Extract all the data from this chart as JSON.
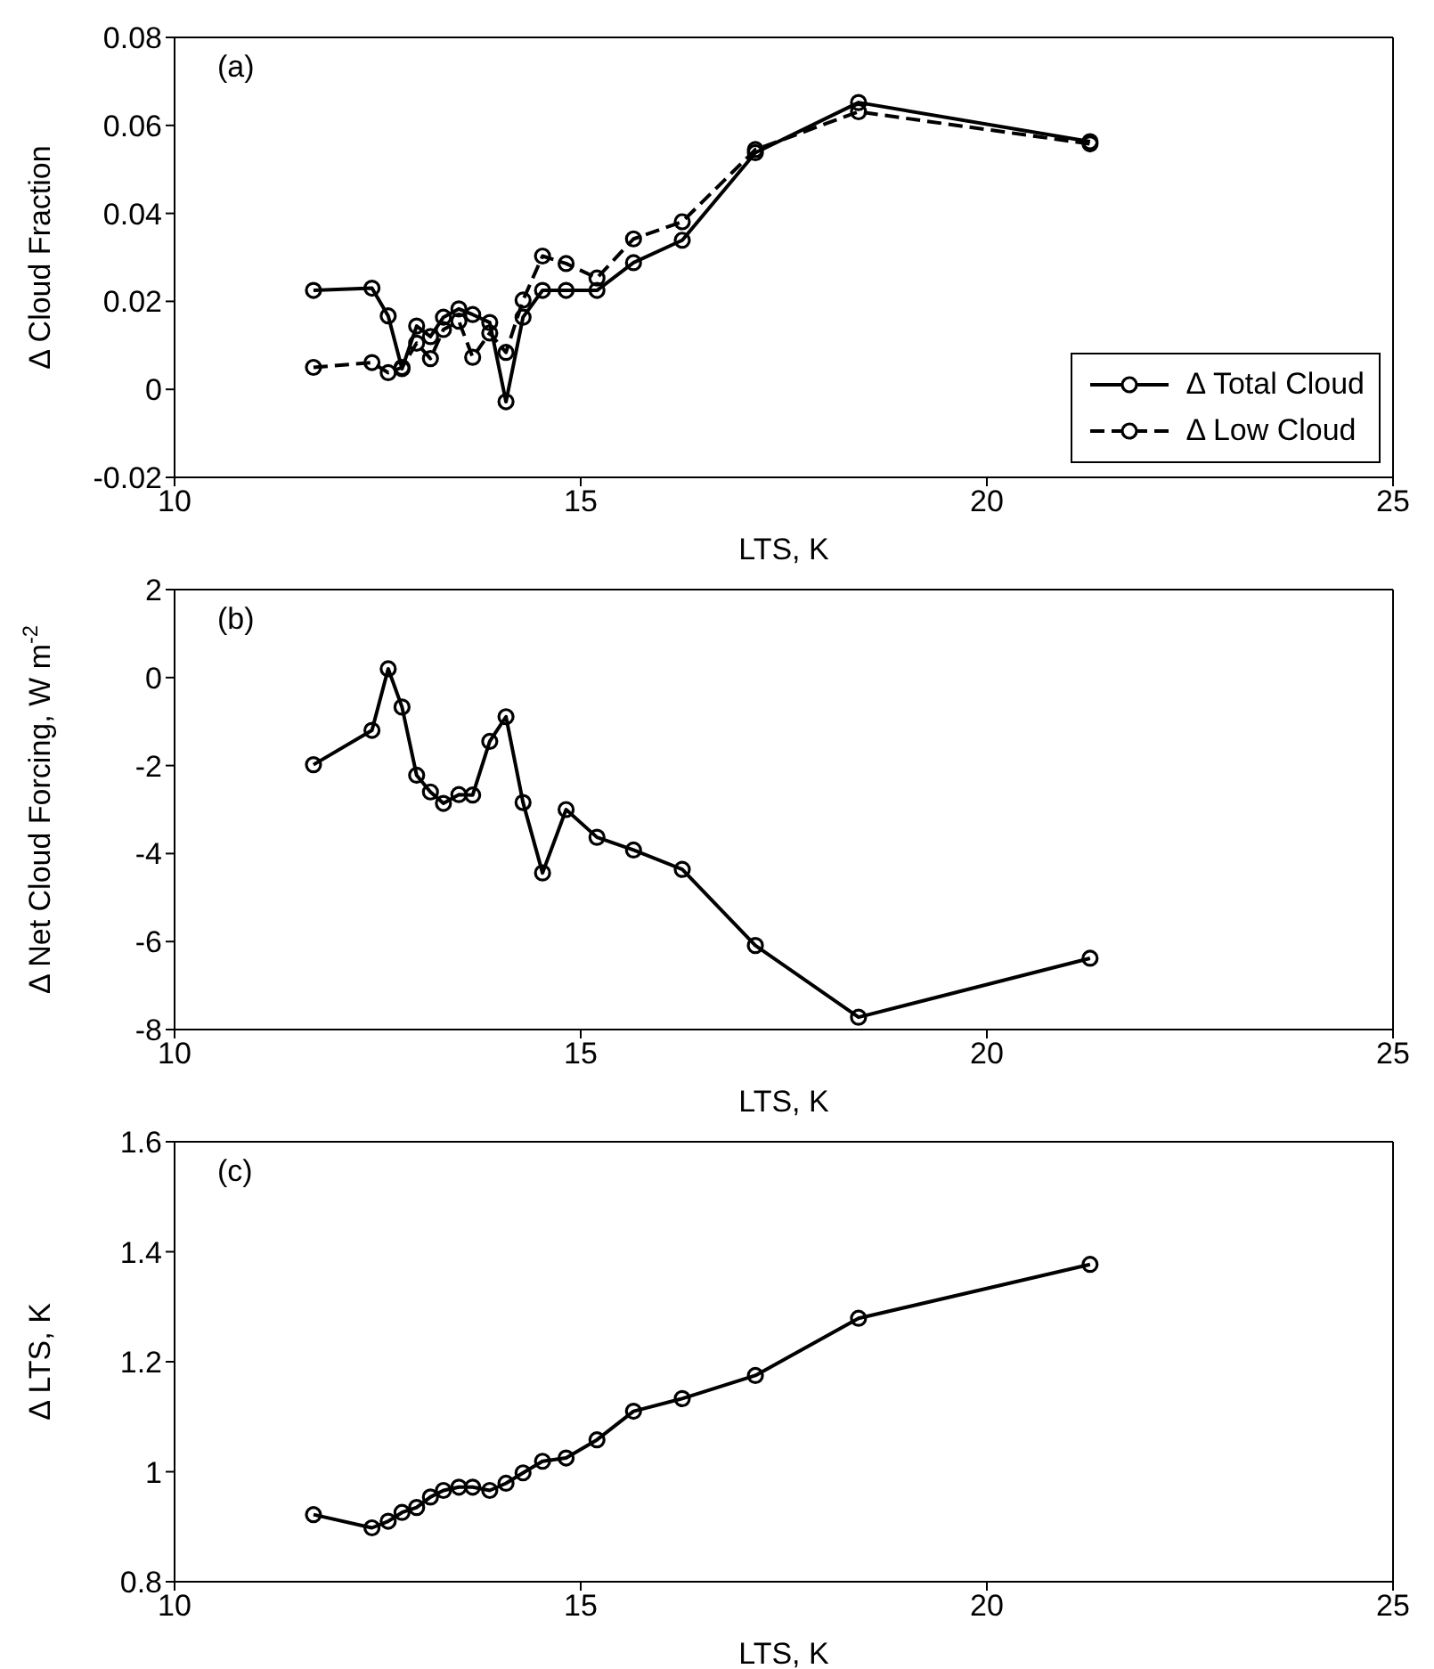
{
  "chart_data": [
    {
      "type": "line",
      "x": [
        11.71,
        12.43,
        12.63,
        12.8,
        12.98,
        13.15,
        13.31,
        13.5,
        13.67,
        13.88,
        14.08,
        14.29,
        14.53,
        14.82,
        15.2,
        15.65,
        16.25,
        17.15,
        18.42,
        21.27
      ],
      "series": [
        {
          "name": "Δ Total Cloud",
          "color": "#000000",
          "line_style": "solid",
          "values": [
            0.0225,
            0.023,
            0.0167,
            0.0047,
            0.0144,
            0.012,
            0.0164,
            0.0183,
            0.017,
            0.0152,
            -0.0028,
            0.0164,
            0.0225,
            0.0225,
            0.0225,
            0.0288,
            0.0339,
            0.0538,
            0.0652,
            0.0563
          ]
        },
        {
          "name": "Δ Low Cloud",
          "color": "#000000",
          "line_style": "dashed",
          "values": [
            0.005,
            0.0061,
            0.0038,
            0.005,
            0.0105,
            0.007,
            0.0136,
            0.0155,
            0.0073,
            0.0128,
            0.0084,
            0.0203,
            0.0303,
            0.0286,
            0.0253,
            0.0342,
            0.0381,
            0.0545,
            0.0631,
            0.0558
          ]
        }
      ],
      "xlim": [
        10,
        25
      ],
      "xticks": [
        10,
        15,
        20,
        25
      ],
      "ylim": [
        -0.02,
        0.08
      ],
      "yticks": [
        -0.02,
        0,
        0.02,
        0.04,
        0.06,
        0.08
      ],
      "xlabel": "LTS, K",
      "ylabel": "Δ Cloud Fraction",
      "annotations": [
        "(a)"
      ],
      "marker": "circle",
      "legend": "bottom right",
      "grid": false
    },
    {
      "type": "line",
      "x": [
        11.71,
        12.43,
        12.63,
        12.8,
        12.98,
        13.15,
        13.31,
        13.5,
        13.67,
        13.88,
        14.08,
        14.29,
        14.53,
        14.82,
        15.2,
        15.65,
        16.25,
        17.15,
        18.42,
        21.27
      ],
      "series": [
        {
          "color": "#000000",
          "line_style": "solid",
          "values": [
            -1.98,
            -1.2,
            0.2,
            -0.67,
            -2.22,
            -2.6,
            -2.86,
            -2.66,
            -2.67,
            -1.45,
            -0.89,
            -2.84,
            -4.44,
            -3.0,
            -3.63,
            -3.92,
            -4.36,
            -6.09,
            -7.72,
            -6.38
          ]
        }
      ],
      "xlim": [
        10,
        25
      ],
      "xticks": [
        10,
        15,
        20,
        25
      ],
      "ylim": [
        -8,
        2
      ],
      "yticks": [
        -8,
        -6,
        -4,
        -2,
        0,
        2
      ],
      "xlabel": "LTS, K",
      "ylabel": "Δ Net Cloud Forcing, W m$^{-2}$",
      "annotations": [
        "(b)"
      ],
      "marker": "circle",
      "grid": false
    },
    {
      "type": "line",
      "x": [
        11.71,
        12.43,
        12.63,
        12.8,
        12.98,
        13.15,
        13.31,
        13.5,
        13.67,
        13.88,
        14.08,
        14.29,
        14.53,
        14.82,
        15.2,
        15.65,
        16.25,
        17.15,
        18.42,
        21.27
      ],
      "series": [
        {
          "color": "#000000",
          "line_style": "solid",
          "values": [
            0.922,
            0.898,
            0.91,
            0.926,
            0.935,
            0.954,
            0.966,
            0.972,
            0.972,
            0.966,
            0.979,
            0.998,
            1.019,
            1.025,
            1.058,
            1.11,
            1.133,
            1.175,
            1.279,
            1.377
          ]
        }
      ],
      "xlim": [
        10,
        25
      ],
      "xticks": [
        10,
        15,
        20,
        25
      ],
      "ylim": [
        0.8,
        1.6
      ],
      "yticks": [
        0.8,
        1,
        1.2,
        1.4,
        1.6
      ],
      "xlabel": "LTS, K",
      "ylabel": "Δ LTS, K",
      "annotations": [
        "(c)"
      ],
      "marker": "circle",
      "grid": false
    }
  ]
}
